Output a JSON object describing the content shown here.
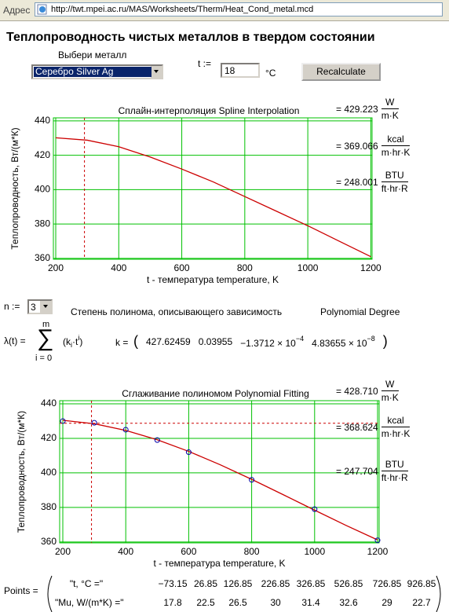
{
  "address_bar": {
    "label": "Адрес",
    "url": "http://twt.mpei.ac.ru/MAS/Worksheets/Therm/Heat_Cond_metal.mcd"
  },
  "title": "Теплопроводность чистых металлов в твердом состоянии",
  "metal_selector": {
    "label": "Выбери металл",
    "selected": "Серебро Silver Ag"
  },
  "temperature": {
    "label": "t :=",
    "value": "18",
    "unit": "°C"
  },
  "button": "Recalculate",
  "spline_results": [
    {
      "value": "= 429.223",
      "num": "W",
      "den": "m·K"
    },
    {
      "value": "= 369.066",
      "num": "kcal",
      "den": "m·hr·K"
    },
    {
      "value": "= 248.001",
      "num": "BTU",
      "den": "ft·hr·R"
    }
  ],
  "degree": {
    "label": "n :=",
    "value": "3",
    "description": "Степень полинома, описывающего зависимость",
    "description_en": "Polynomial Degree"
  },
  "formula": {
    "lhs": "λ(t) =",
    "sum": "∑",
    "upper": "m",
    "lower": "i = 0",
    "term_open": "(k",
    "term_sub": "i",
    "term_mid": "·t",
    "term_sup": "i",
    "term_close": ")",
    "k_label": "k =",
    "k_open": "(",
    "k_items": [
      {
        "text": "427.62459"
      },
      {
        "text": "0.03955"
      },
      {
        "text": "−1.3712 × 10",
        "sup": "−4"
      },
      {
        "text": "4.83655 × 10",
        "sup": "−8"
      }
    ],
    "k_close": ")"
  },
  "fit_results": [
    {
      "value": "= 428.710",
      "num": "W",
      "den": "m·K"
    },
    {
      "value": "= 368.624",
      "num": "kcal",
      "den": "m·hr·K"
    },
    {
      "value": "= 247.704",
      "num": "BTU",
      "den": "ft·hr·R"
    }
  ],
  "points": {
    "label": "Points =",
    "rows": [
      [
        "\"t, °C =\"",
        "−73.15",
        "26.85",
        "126.85",
        "226.85",
        "326.85",
        "526.85",
        "726.85",
        "926.85"
      ],
      [
        "\"Mu, W/(m*K) =\"",
        "17.8",
        "22.5",
        "26.5",
        "30",
        "31.4",
        "32.6",
        "29",
        "22.7"
      ]
    ]
  },
  "chart_data": [
    {
      "type": "line",
      "title": "Сплайн-интерполяция Spline Interpolation",
      "xlabel": "t - температура temperature, K",
      "ylabel": "Теплопроводность, Вт/(м*К)",
      "xlim": [
        192.5,
        1204
      ],
      "ylim": [
        359.5,
        441.8
      ],
      "xticks": [
        200,
        400,
        600,
        800,
        1000,
        1200
      ],
      "yticks": [
        360,
        380,
        400,
        420,
        440
      ],
      "grid": true,
      "grid_color": "#00c000",
      "series": [
        {
          "color": "#cc0000",
          "x": [
            200,
            300,
            400,
            500,
            600,
            700,
            800,
            900,
            1000,
            1100,
            1200
          ],
          "values": [
            430.2,
            428.8,
            425,
            419,
            412,
            404.5,
            396,
            387.5,
            379,
            370,
            361
          ]
        }
      ],
      "cursor": {
        "x": 291.15,
        "color": "#cc0000"
      }
    },
    {
      "type": "line",
      "title": "Сглаживание полиномом Polynomial Fitting",
      "xlabel": "t - температура temperature, K",
      "ylabel": "Теплопроводность, Вт/(м*К)",
      "xlim": [
        190,
        1205
      ],
      "ylim": [
        359.5,
        441.8
      ],
      "xticks": [
        200,
        400,
        600,
        800,
        1000,
        1200
      ],
      "yticks": [
        360,
        380,
        400,
        420,
        440
      ],
      "grid": true,
      "grid_color": "#00c000",
      "series": [
        {
          "color": "#cc0000",
          "x": [
            200,
            300,
            400,
            500,
            600,
            700,
            800,
            900,
            1000,
            1100,
            1200
          ],
          "values": [
            430.43,
            428.45,
            424.6,
            419.16,
            412.44,
            404.71,
            396.26,
            387.41,
            378.42,
            369.58,
            361.21
          ]
        },
        {
          "type": "scatter",
          "color": "#0000aa",
          "x": [
            200,
            300,
            400,
            500,
            600,
            800,
            1000,
            1200
          ],
          "values": [
            430,
            429,
            425,
            419,
            412,
            396,
            379,
            361
          ]
        }
      ],
      "cursor": {
        "x": 291.15,
        "y": 428.71,
        "color": "#cc0000"
      }
    }
  ]
}
